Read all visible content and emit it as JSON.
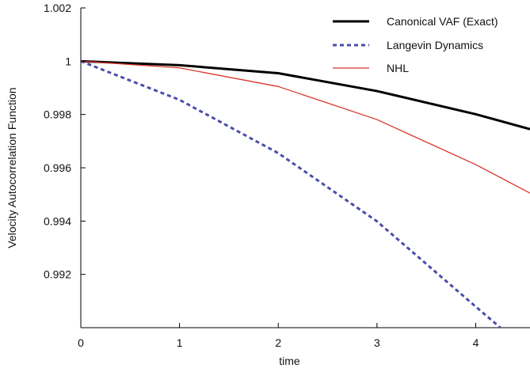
{
  "chart_data": {
    "type": "line",
    "xlabel": "time",
    "ylabel": "Velocity Autocorrelation Function",
    "xlim": [
      0,
      4.55
    ],
    "ylim": [
      0.99,
      1.002
    ],
    "xticks": [
      0,
      1,
      2,
      3,
      4
    ],
    "xtick_labels": [
      "0",
      "1",
      "2",
      "3",
      "4"
    ],
    "yticks": [
      0.992,
      0.994,
      0.996,
      0.998,
      1,
      1.002
    ],
    "ytick_labels": [
      "0.992",
      "0.994",
      "0.996",
      "0.998",
      "1",
      "1.002"
    ],
    "grid": false,
    "legend_position": "top-right",
    "series": [
      {
        "name": "Canonical VAF (Exact)",
        "color": "#000000",
        "style": "solid",
        "x": [
          0,
          1,
          2,
          3,
          4,
          4.55
        ],
        "values": [
          1.0,
          0.99985,
          0.99955,
          0.99888,
          0.99801,
          0.99745
        ]
      },
      {
        "name": "Langevin Dynamics",
        "color": "#4a4ea8",
        "style": "dashed",
        "x": [
          0,
          1,
          2,
          3,
          4,
          4.25
        ],
        "values": [
          1.0,
          0.99855,
          0.99655,
          0.99399,
          0.99079,
          0.99
        ]
      },
      {
        "name": "NHL",
        "color": "#d8342a",
        "style": "solid",
        "x": [
          0,
          1,
          2,
          3,
          4,
          4.55
        ],
        "values": [
          1.0,
          0.99975,
          0.99905,
          0.99781,
          0.99612,
          0.99505
        ]
      }
    ]
  }
}
